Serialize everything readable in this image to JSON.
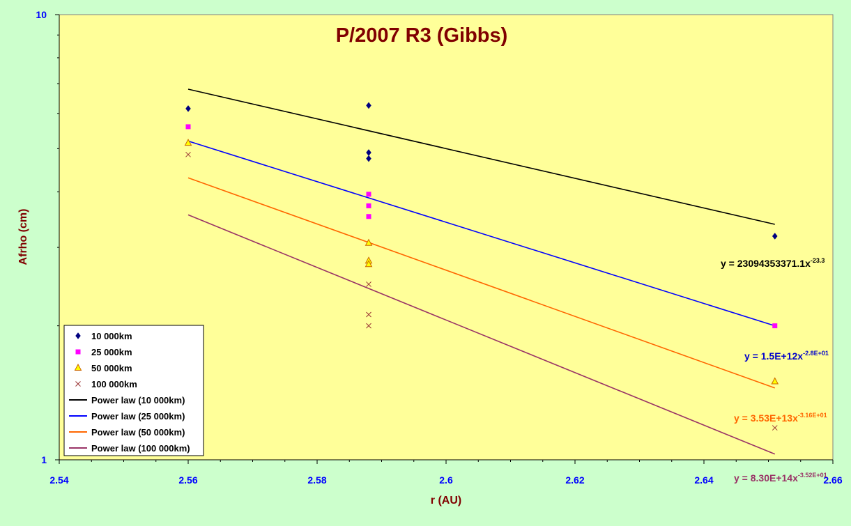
{
  "chart_data": {
    "type": "scatter",
    "title": "P/2007 R3 (Gibbs)",
    "xlabel": "r (AU)",
    "ylabel": "Afrho (cm)",
    "xlim": [
      2.54,
      2.66
    ],
    "ylim": [
      1,
      10
    ],
    "y_scale": "log",
    "x_ticks": [
      "2.54",
      "2.56",
      "2.58",
      "2.6",
      "2.62",
      "2.64",
      "2.66"
    ],
    "y_ticks": [
      "1",
      "10"
    ],
    "grid": false,
    "legend_position": "bottom-left",
    "plot_background": "#ffff99",
    "series": [
      {
        "name": "10 000km",
        "marker": "diamond",
        "color": "#000080",
        "points": [
          [
            2.56,
            6.15
          ],
          [
            2.588,
            6.25
          ],
          [
            2.588,
            4.9
          ],
          [
            2.588,
            4.75
          ],
          [
            2.651,
            3.18
          ]
        ]
      },
      {
        "name": "25 000km",
        "marker": "square",
        "color": "#ff00ff",
        "points": [
          [
            2.56,
            5.6
          ],
          [
            2.588,
            3.95
          ],
          [
            2.588,
            3.72
          ],
          [
            2.588,
            3.52
          ],
          [
            2.651,
            2.0
          ]
        ]
      },
      {
        "name": "50 000km",
        "marker": "triangle",
        "color": "#cc6600",
        "fill": "#ffff00",
        "points": [
          [
            2.56,
            5.15
          ],
          [
            2.588,
            3.07
          ],
          [
            2.588,
            2.8
          ],
          [
            2.588,
            2.75
          ],
          [
            2.651,
            1.5
          ]
        ]
      },
      {
        "name": "100 000km",
        "marker": "x",
        "color": "#993333",
        "points": [
          [
            2.56,
            4.85
          ],
          [
            2.588,
            2.48
          ],
          [
            2.588,
            2.12
          ],
          [
            2.588,
            2.0
          ],
          [
            2.651,
            1.18
          ]
        ]
      }
    ],
    "trendlines": [
      {
        "name": "Power law (10 000km)",
        "color": "#000000",
        "x_range": [
          2.56,
          2.651
        ],
        "y_start": 6.8,
        "y_end": 3.38,
        "equation": "y = 23094353371.1x",
        "exponent": "-23.3",
        "eq_color": "#000000"
      },
      {
        "name": "Power law (25 000km)",
        "color": "#0000ff",
        "x_range": [
          2.56,
          2.651
        ],
        "y_start": 5.2,
        "y_end": 2.0,
        "equation": "y = 1.5E+12x",
        "exponent": "-2.8E+01",
        "eq_color": "#0000cc"
      },
      {
        "name": "Power law (50 000km)",
        "color": "#ff6600",
        "x_range": [
          2.56,
          2.651
        ],
        "y_start": 4.3,
        "y_end": 1.45,
        "equation": "y = 3.53E+13x",
        "exponent": "-3.16E+01",
        "eq_color": "#ff6600"
      },
      {
        "name": "Power law (100 000km)",
        "color": "#993366",
        "x_range": [
          2.56,
          2.651
        ],
        "y_start": 3.55,
        "y_end": 1.03,
        "equation": "y = 8.30E+14x",
        "exponent": "-3.52E+01",
        "eq_color": "#993366"
      }
    ]
  }
}
